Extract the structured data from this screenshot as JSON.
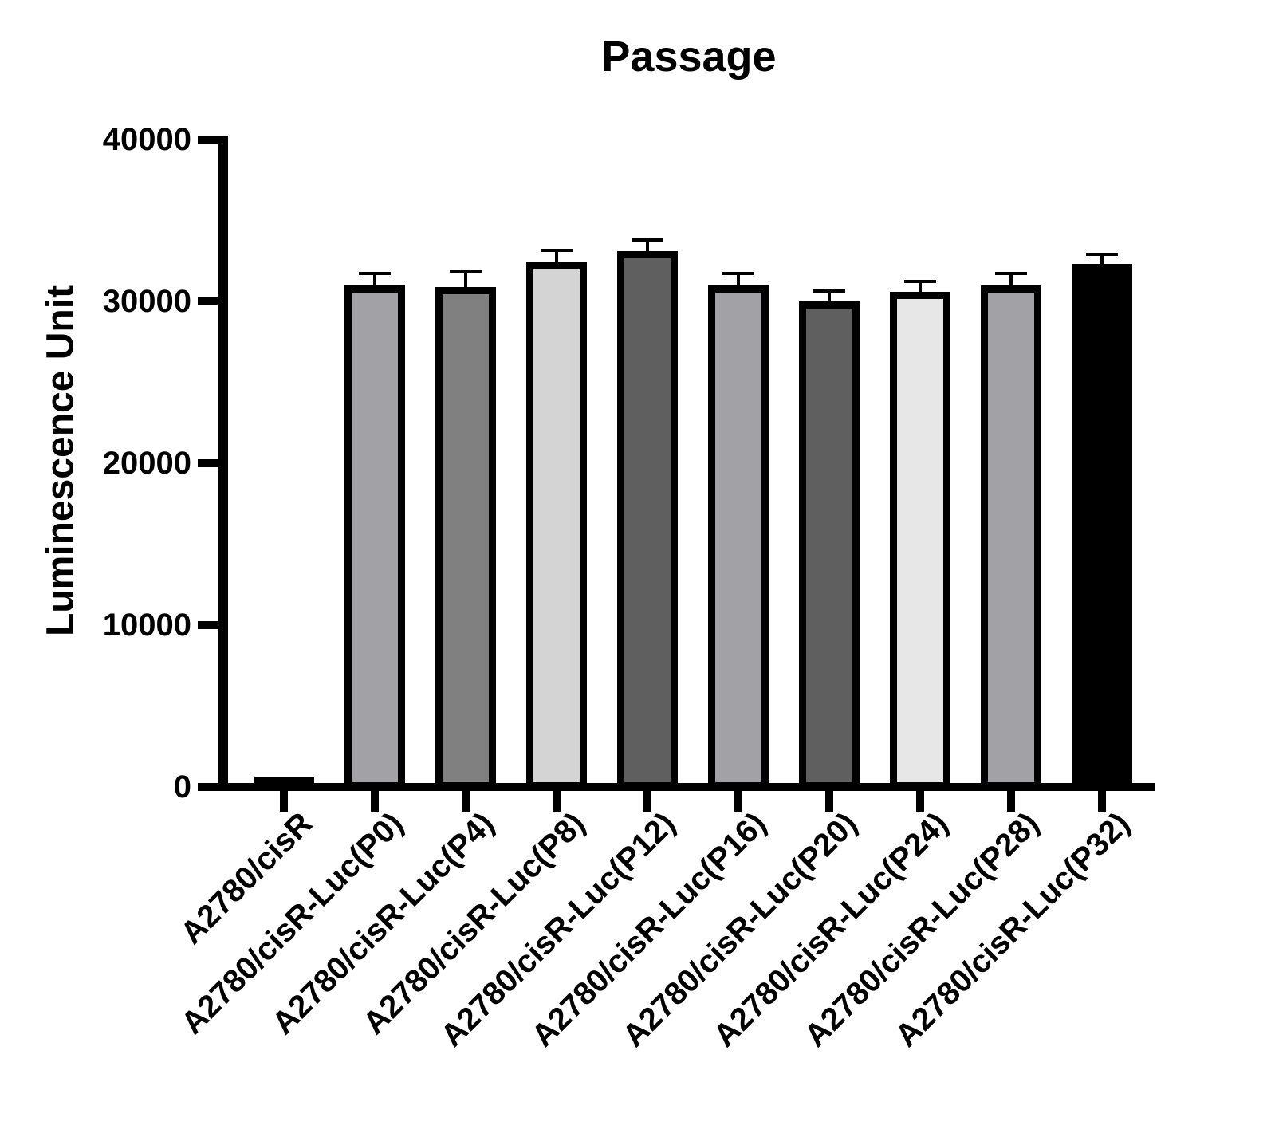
{
  "chart_data": {
    "type": "bar",
    "title": "Passage",
    "ylabel": "Luminescence Unit",
    "xlabel": "",
    "categories": [
      "A2780/cisR",
      "A2780/cisR-Luc(P0)",
      "A2780/cisR-Luc(P4)",
      "A2780/cisR-Luc(P8)",
      "A2780/cisR-Luc(P12)",
      "A2780/cisR-Luc(P16)",
      "A2780/cisR-Luc(P20)",
      "A2780/cisR-Luc(P24)",
      "A2780/cisR-Luc(P28)",
      "A2780/cisR-Luc(P32)"
    ],
    "values": [
      600,
      31000,
      30900,
      32400,
      33100,
      31000,
      30000,
      30600,
      31000,
      32300
    ],
    "errors": [
      0,
      800,
      1000,
      850,
      800,
      800,
      750,
      750,
      800,
      700
    ],
    "bar_colors": [
      "#909090",
      "#A2A2A6",
      "#808080",
      "#D4D4D4",
      "#5F5F5F",
      "#A2A2A6",
      "#5F5F5F",
      "#E7E7E7",
      "#A2A2A6",
      "#000000"
    ],
    "bar_border_color": "#000000",
    "error_bar_color": "#000000",
    "axis_color": "#000000",
    "yticks": [
      0,
      10000,
      20000,
      30000,
      40000
    ],
    "ylim": [
      0,
      40000
    ],
    "grid": false,
    "legend": "none"
  }
}
